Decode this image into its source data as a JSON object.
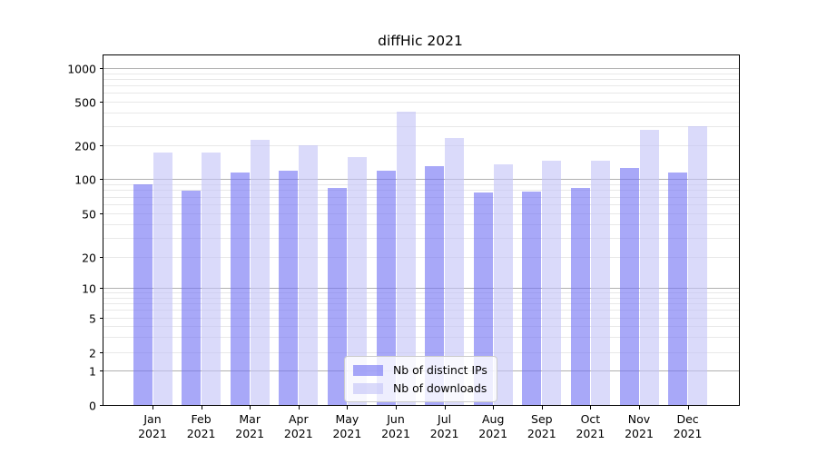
{
  "chart_data": {
    "type": "bar",
    "title": "diffHic 2021",
    "categories": [
      "Jan",
      "Feb",
      "Mar",
      "Apr",
      "May",
      "Jun",
      "Jul",
      "Aug",
      "Sep",
      "Oct",
      "Nov",
      "Dec"
    ],
    "year": "2021",
    "series": [
      {
        "name": "Nb of distinct IPs",
        "color": "rgba(115,115,243,0.62)",
        "effective_hex": "#a8a8f7",
        "values": [
          90,
          79,
          114,
          118,
          84,
          118,
          129,
          76,
          78,
          83,
          125,
          115
        ]
      },
      {
        "name": "Nb of downloads",
        "color": "rgba(195,195,247,0.62)",
        "effective_hex": "#dadaf9",
        "values": [
          172,
          171,
          225,
          199,
          156,
          408,
          234,
          135,
          146,
          146,
          277,
          300
        ]
      }
    ],
    "yticks": [
      0,
      1,
      2,
      5,
      10,
      20,
      50,
      100,
      200,
      500,
      1000
    ],
    "ylim": [
      0,
      1400
    ],
    "yscale": "symlog",
    "xlabel": "",
    "ylabel": "",
    "grid": true,
    "legend_position": "lower center",
    "style": {
      "grid_major_color": "#b0b0b0",
      "grid_minor_color": "#e8e8e8",
      "spine_color": "#000000",
      "background": "#ffffff"
    }
  }
}
